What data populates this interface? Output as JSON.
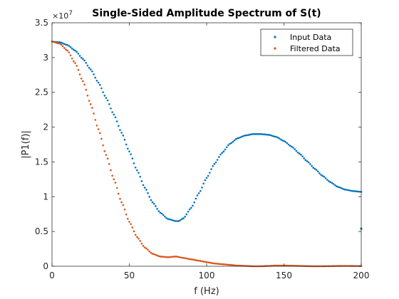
{
  "chart_data": {
    "type": "scatter",
    "title": "Single-Sided Amplitude Spectrum of S(t)",
    "xlabel": "f (Hz)",
    "ylabel": "|P1(f)|",
    "y_exponent_label": "×10",
    "y_exponent": "7",
    "xlim": [
      0,
      200
    ],
    "ylim": [
      0,
      3.5
    ],
    "y_scale_factor": 10000000,
    "xticks": [
      0,
      50,
      100,
      150,
      200
    ],
    "xtick_labels": [
      "0",
      "50",
      "100",
      "150",
      "200"
    ],
    "yticks": [
      0,
      0.5,
      1,
      1.5,
      2,
      2.5,
      3,
      3.5
    ],
    "ytick_labels": [
      "0",
      "0.5",
      "1",
      "1.5",
      "2",
      "2.5",
      "3",
      "3.5"
    ],
    "legend_position": "top-right",
    "grid": false,
    "series": [
      {
        "name": "Input Data",
        "color": "#0072BD",
        "x": [
          0,
          5,
          10,
          15,
          20,
          25,
          30,
          35,
          40,
          45,
          50,
          55,
          60,
          65,
          70,
          75,
          80,
          82,
          85,
          90,
          95,
          100,
          105,
          110,
          115,
          120,
          125,
          130,
          135,
          140,
          145,
          150,
          155,
          160,
          165,
          170,
          175,
          180,
          185,
          190,
          195,
          200
        ],
        "y": [
          3.23,
          3.22,
          3.18,
          3.1,
          2.98,
          2.83,
          2.64,
          2.42,
          2.18,
          1.92,
          1.65,
          1.38,
          1.13,
          0.92,
          0.77,
          0.68,
          0.65,
          0.65,
          0.69,
          0.84,
          1.05,
          1.27,
          1.47,
          1.63,
          1.76,
          1.84,
          1.88,
          1.9,
          1.9,
          1.89,
          1.86,
          1.8,
          1.72,
          1.62,
          1.51,
          1.4,
          1.3,
          1.21,
          1.14,
          1.1,
          1.08,
          1.07
        ]
      },
      {
        "name": "Filtered Data",
        "color": "#D95319",
        "x": [
          0,
          5,
          10,
          15,
          20,
          25,
          30,
          35,
          40,
          45,
          50,
          55,
          60,
          65,
          70,
          75,
          80,
          85,
          90,
          95,
          100,
          105,
          110,
          115,
          120,
          125,
          130,
          135,
          140,
          145,
          150,
          155,
          160,
          165,
          170,
          175,
          180,
          185,
          190,
          195,
          200
        ],
        "y": [
          3.23,
          3.2,
          3.1,
          2.92,
          2.66,
          2.33,
          1.97,
          1.6,
          1.25,
          0.92,
          0.64,
          0.42,
          0.27,
          0.18,
          0.14,
          0.13,
          0.14,
          0.12,
          0.1,
          0.08,
          0.06,
          0.04,
          0.03,
          0.02,
          0.01,
          0.005,
          0.0,
          0.0,
          0.005,
          0.01,
          0.01,
          0.008,
          0.005,
          0.002,
          0.0,
          0.0,
          0.002,
          0.004,
          0.005,
          0.004,
          0.003
        ]
      }
    ],
    "outlier_points": [
      {
        "series": "Input Data",
        "x": 200,
        "y": 0.54
      }
    ]
  }
}
